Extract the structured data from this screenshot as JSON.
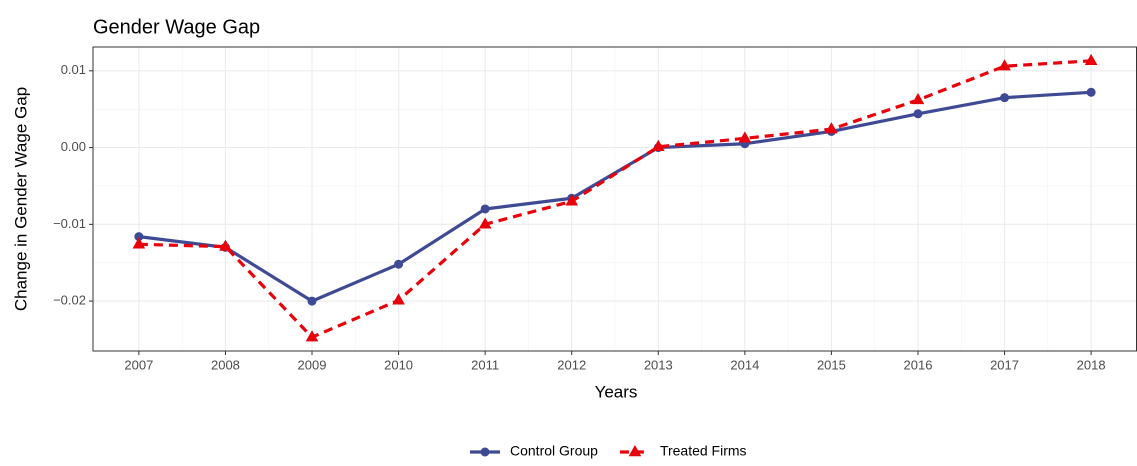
{
  "chart_data": {
    "type": "line",
    "title": "Gender Wage Gap",
    "x_label": "Years",
    "y_label": "Change in Gender Wage Gap",
    "x": [
      2007,
      2008,
      2009,
      2010,
      2011,
      2012,
      2013,
      2014,
      2015,
      2016,
      2017,
      2018
    ],
    "series": [
      {
        "name": "Control Group",
        "color": "#3f4a94",
        "dash": "solid",
        "marker": "circle",
        "values": [
          -0.0116,
          -0.013,
          -0.02,
          -0.0152,
          -0.008,
          -0.0066,
          0.0,
          0.0005,
          0.0021,
          0.0044,
          0.0065,
          0.0072
        ]
      },
      {
        "name": "Treated Firms",
        "color": "#e8000b",
        "dash": "dashed",
        "marker": "triangle",
        "values": [
          -0.0126,
          -0.0129,
          -0.0247,
          -0.0199,
          -0.01,
          -0.007,
          0.0001,
          0.0012,
          0.0024,
          0.0062,
          0.0106,
          0.0113
        ]
      }
    ],
    "xlim": [
      2006.47,
      2018.53
    ],
    "xticks": [
      2007,
      2008,
      2009,
      2010,
      2011,
      2012,
      2013,
      2014,
      2015,
      2016,
      2017,
      2018
    ],
    "ylim": [
      -0.0265,
      0.0131
    ],
    "yticks": [
      {
        "value": -0.02,
        "label": "−0.02"
      },
      {
        "value": -0.01,
        "label": "−0.01"
      },
      {
        "value": 0,
        "label": "0.00"
      },
      {
        "value": 0.01,
        "label": "0.01"
      }
    ],
    "grid": true,
    "legend": "bottom"
  }
}
